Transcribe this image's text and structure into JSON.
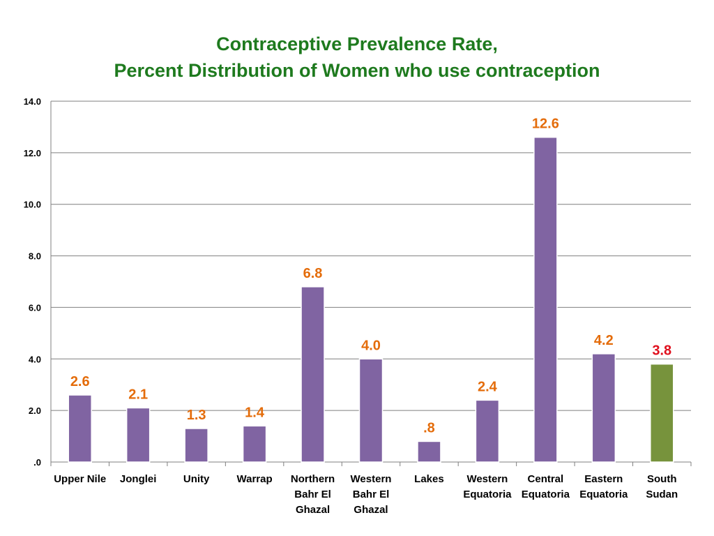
{
  "chart_data": {
    "type": "bar",
    "title_line1": "Contraceptive Prevalence Rate,",
    "title_line2": "Percent Distribution of Women who use contraception",
    "categories": [
      [
        "Upper Nile"
      ],
      [
        "Jonglei"
      ],
      [
        "Unity"
      ],
      [
        "Warrap"
      ],
      [
        "Northern",
        "Bahr El",
        "Ghazal"
      ],
      [
        "Western",
        "Bahr El",
        "Ghazal"
      ],
      [
        "Lakes"
      ],
      [
        "Western",
        "Equatoria"
      ],
      [
        "Central",
        "Equatoria"
      ],
      [
        "Eastern",
        "Equatoria"
      ],
      [
        "South",
        "Sudan"
      ]
    ],
    "values": [
      2.6,
      2.1,
      1.3,
      1.4,
      6.8,
      4.0,
      0.8,
      2.4,
      12.6,
      4.2,
      3.8
    ],
    "value_labels": [
      "2.6",
      "2.1",
      "1.3",
      "1.4",
      "6.8",
      "4.0",
      ".8",
      "2.4",
      "12.6",
      "4.2",
      "3.8"
    ],
    "yticks": [
      0,
      2,
      4,
      6,
      8,
      10,
      12,
      14
    ],
    "ytick_labels": [
      ".0",
      "2.0",
      "4.0",
      "6.0",
      "8.0",
      "10.0",
      "12.0",
      "14.0"
    ],
    "ylim": [
      0,
      14
    ],
    "grid": true,
    "legend": "none",
    "colors": {
      "bar": "#8064a2",
      "highlight_bar": "#77933c",
      "label": "#e46c0a",
      "highlight_label": "#e0101e",
      "title": "#1e7a1e",
      "grid": "#7f7f7f"
    },
    "highlight_index": 10
  }
}
